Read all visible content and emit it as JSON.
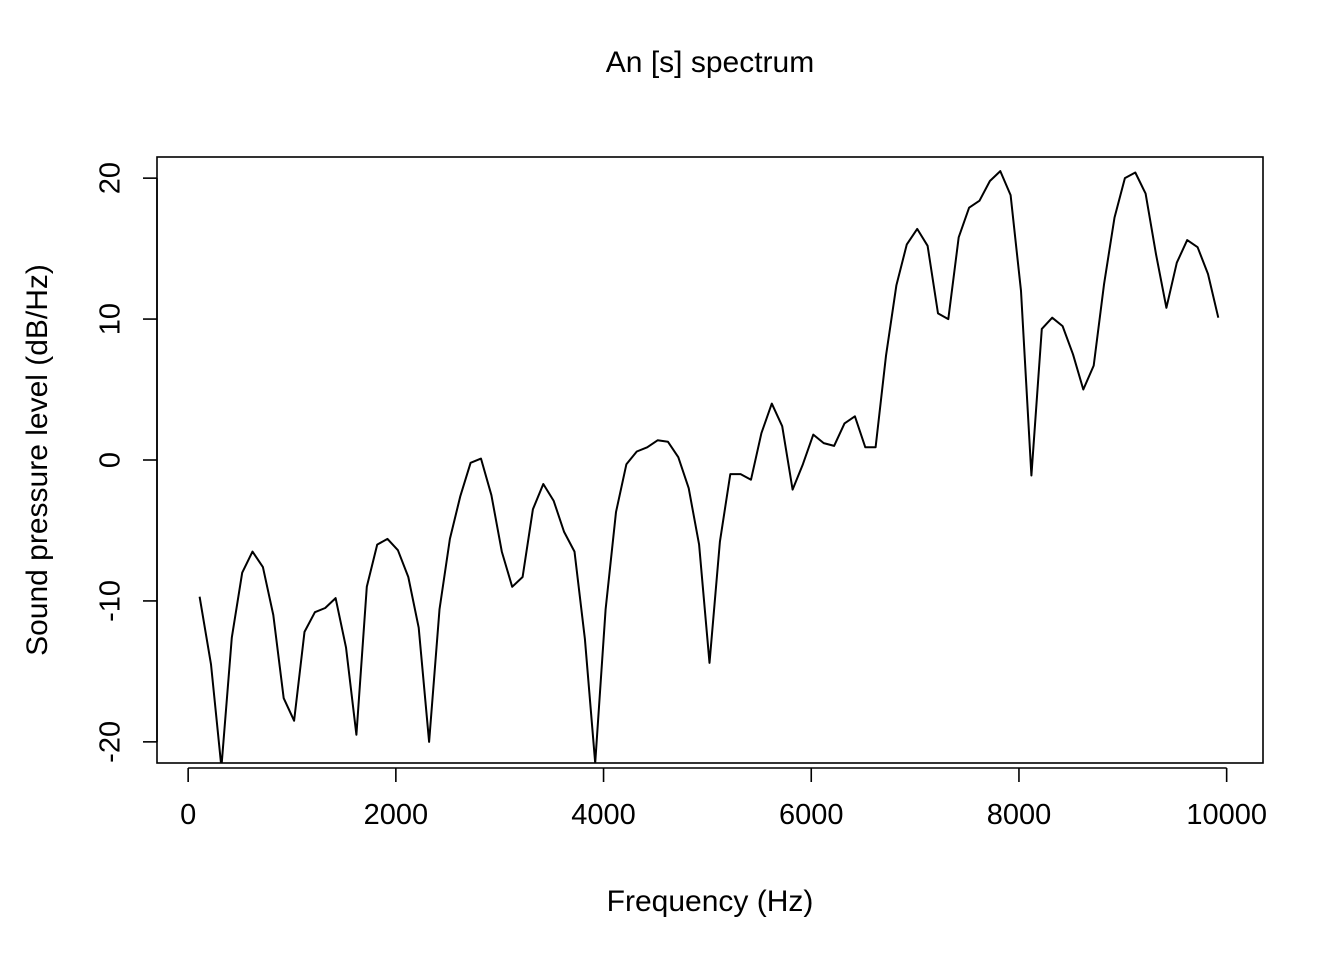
{
  "chart_data": {
    "type": "line",
    "title": "An [s] spectrum",
    "xlabel": "Frequency (Hz)",
    "ylabel": "Sound pressure level (dB/Hz)",
    "xlim": [
      -300,
      10350
    ],
    "ylim": [
      -21.5,
      21.5
    ],
    "x_ticks": [
      0,
      2000,
      4000,
      6000,
      8000,
      10000
    ],
    "y_ticks": [
      -20,
      -10,
      0,
      10,
      20
    ],
    "x_tick_labels": [
      "0",
      "2000",
      "4000",
      "6000",
      "8000",
      "10000"
    ],
    "y_tick_labels": [
      "-20",
      "-10",
      "0",
      "10",
      "20"
    ],
    "grid": false,
    "series": [
      {
        "x": [
          110,
          220,
          320,
          420,
          520,
          620,
          720,
          820,
          920,
          1020,
          1120,
          1220,
          1320,
          1420,
          1520,
          1620,
          1720,
          1820,
          1920,
          2020,
          2120,
          2220,
          2320,
          2420,
          2520,
          2620,
          2720,
          2820,
          2920,
          3020,
          3120,
          3220,
          3320,
          3420,
          3520,
          3620,
          3720,
          3820,
          3920,
          4020,
          4120,
          4220,
          4320,
          4420,
          4520,
          4620,
          4720,
          4820,
          4920,
          5020,
          5120,
          5220,
          5320,
          5420,
          5520,
          5620,
          5720,
          5820,
          5920,
          6020,
          6120,
          6220,
          6320,
          6420,
          6520,
          6620,
          6720,
          6820,
          6920,
          7020,
          7120,
          7220,
          7320,
          7420,
          7520,
          7620,
          7720,
          7820,
          7920,
          8020,
          8120,
          8220,
          8320,
          8420,
          8520,
          8620,
          8720,
          8820,
          8920,
          9020,
          9120,
          9220,
          9320,
          9420,
          9520,
          9620,
          9720,
          9820,
          9920
        ],
        "values": [
          -9.7,
          -14.5,
          -21.8,
          -12.6,
          -8.0,
          -6.5,
          -7.6,
          -11.0,
          -16.9,
          -18.5,
          -12.2,
          -10.8,
          -10.5,
          -9.8,
          -13.3,
          -19.5,
          -9.0,
          -6.0,
          -5.6,
          -6.4,
          -8.3,
          -11.9,
          -20.0,
          -10.6,
          -5.6,
          -2.6,
          -0.2,
          0.1,
          -2.5,
          -6.5,
          -9.0,
          -8.3,
          -3.5,
          -1.7,
          -2.9,
          -5.1,
          -6.5,
          -12.7,
          -21.5,
          -10.6,
          -3.7,
          -0.3,
          0.6,
          0.9,
          1.4,
          1.3,
          0.2,
          -2.0,
          -6.0,
          -14.4,
          -5.8,
          -1.0,
          -1.0,
          -1.4,
          1.9,
          4.0,
          2.4,
          -2.1,
          -0.3,
          1.8,
          1.2,
          1.0,
          2.6,
          3.1,
          0.9,
          0.9,
          7.4,
          12.4,
          15.3,
          16.4,
          15.2,
          10.4,
          10.0,
          15.8,
          17.9,
          18.4,
          19.8,
          20.5,
          18.8,
          12.0,
          -1.1,
          9.3,
          10.1,
          9.5,
          7.5,
          5.0,
          6.7,
          12.5,
          17.2,
          20.0,
          20.4,
          18.9,
          14.6,
          10.8,
          14.0,
          15.6,
          15.1,
          13.2,
          10.1
        ]
      }
    ]
  }
}
